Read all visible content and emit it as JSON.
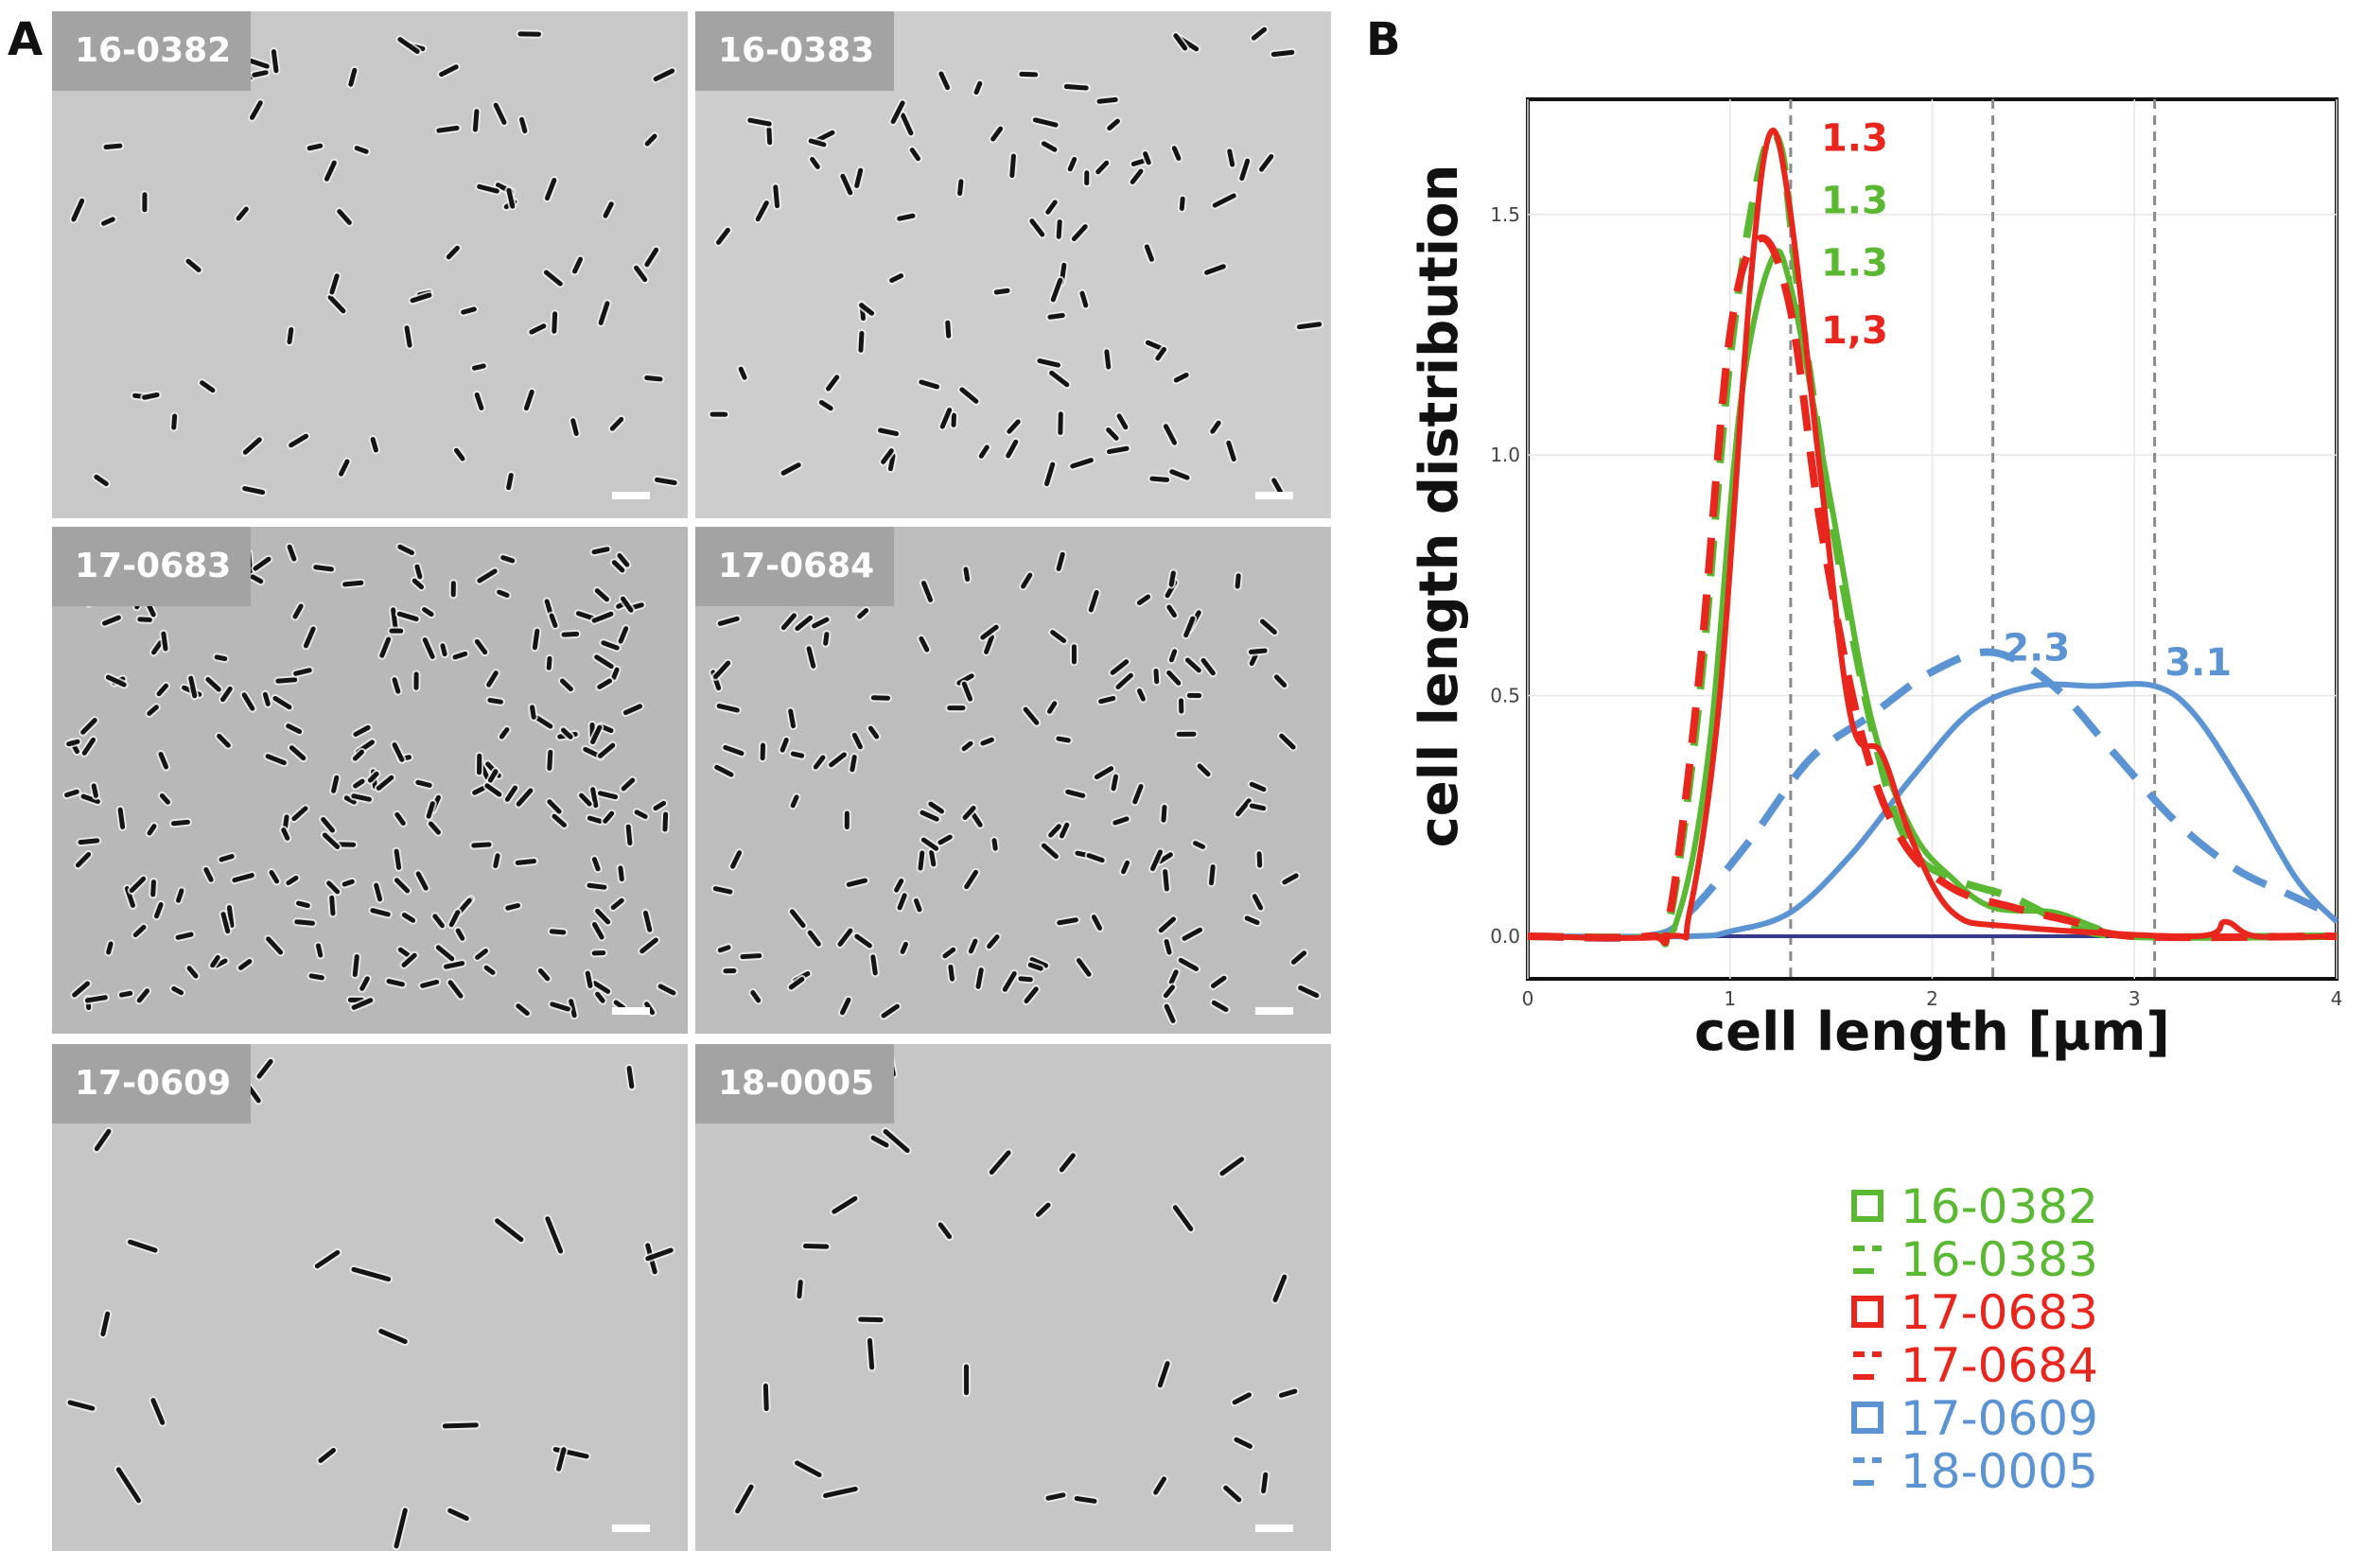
{
  "panel_labels": {
    "a": "A",
    "b": "B"
  },
  "micrographs": [
    {
      "id": "m1",
      "label": "16-0382",
      "seed": 11,
      "count": 70,
      "len": 16,
      "tint": "#c8c8c8"
    },
    {
      "id": "m2",
      "label": "16-0383",
      "seed": 23,
      "count": 95,
      "len": 16,
      "tint": "#cdcdcd"
    },
    {
      "id": "m3",
      "label": "17-0683",
      "seed": 37,
      "count": 230,
      "len": 14,
      "tint": "#b8b8b8"
    },
    {
      "id": "m4",
      "label": "17-0684",
      "seed": 41,
      "count": 150,
      "len": 14,
      "tint": "#bdbdbd"
    },
    {
      "id": "m5",
      "label": "17-0609",
      "seed": 53,
      "count": 22,
      "len": 28,
      "tint": "#c6c6c6"
    },
    {
      "id": "m6",
      "label": "18-0005",
      "seed": 67,
      "count": 30,
      "len": 24,
      "tint": "#c6c6c6"
    }
  ],
  "chart_data": {
    "type": "line",
    "xlabel": "cell length [µm]",
    "ylabel": "cell length distribution",
    "xlim": [
      0,
      4
    ],
    "ylim": [
      0,
      1.7
    ],
    "x_ticks": [
      "0",
      "1",
      "2",
      "3",
      "4"
    ],
    "y_ticks": [
      {
        "value": 0.0,
        "label": "0.0"
      },
      {
        "value": 0.5,
        "label": "0.5"
      },
      {
        "value": 1.0,
        "label": "1.0"
      },
      {
        "value": 1.5,
        "label": "1.5"
      }
    ],
    "grid": true,
    "vlines": [
      1.3,
      2.3,
      3.1
    ],
    "series": [
      {
        "name": "16-0382",
        "color": "#5bb832",
        "dash": false,
        "points": [
          [
            0,
            0
          ],
          [
            0.6,
            0
          ],
          [
            0.75,
            0.05
          ],
          [
            0.9,
            0.4
          ],
          [
            1.05,
            1.1
          ],
          [
            1.2,
            1.4
          ],
          [
            1.3,
            1.35
          ],
          [
            1.5,
            0.9
          ],
          [
            1.7,
            0.45
          ],
          [
            1.9,
            0.22
          ],
          [
            2.1,
            0.12
          ],
          [
            2.3,
            0.06
          ],
          [
            2.6,
            0.05
          ],
          [
            2.8,
            0.02
          ],
          [
            3.0,
            0
          ],
          [
            4,
            0
          ]
        ]
      },
      {
        "name": "16-0383",
        "color": "#5bb832",
        "dash": true,
        "points": [
          [
            0,
            0
          ],
          [
            0.6,
            0
          ],
          [
            0.7,
            0.03
          ],
          [
            0.85,
            0.5
          ],
          [
            1.0,
            1.2
          ],
          [
            1.15,
            1.6
          ],
          [
            1.25,
            1.64
          ],
          [
            1.35,
            1.3
          ],
          [
            1.55,
            0.75
          ],
          [
            1.75,
            0.35
          ],
          [
            1.9,
            0.18
          ],
          [
            2.1,
            0.12
          ],
          [
            2.4,
            0.08
          ],
          [
            2.7,
            0.02
          ],
          [
            3.0,
            0
          ],
          [
            4,
            0
          ]
        ]
      },
      {
        "name": "17-0683",
        "color": "#e8261e",
        "dash": false,
        "points": [
          [
            0,
            0
          ],
          [
            0.7,
            0
          ],
          [
            0.8,
            0.05
          ],
          [
            0.95,
            0.5
          ],
          [
            1.1,
            1.35
          ],
          [
            1.2,
            1.67
          ],
          [
            1.3,
            1.5
          ],
          [
            1.45,
            0.95
          ],
          [
            1.6,
            0.45
          ],
          [
            1.75,
            0.38
          ],
          [
            1.9,
            0.2
          ],
          [
            2.1,
            0.05
          ],
          [
            2.4,
            0.02
          ],
          [
            3.3,
            0
          ],
          [
            3.45,
            0.03
          ],
          [
            3.6,
            0
          ],
          [
            4,
            0
          ]
        ]
      },
      {
        "name": "17-0684",
        "color": "#e8261e",
        "dash": true,
        "points": [
          [
            0,
            0
          ],
          [
            0.6,
            0
          ],
          [
            0.7,
            0.04
          ],
          [
            0.85,
            0.55
          ],
          [
            1.0,
            1.25
          ],
          [
            1.15,
            1.45
          ],
          [
            1.3,
            1.3
          ],
          [
            1.45,
            0.85
          ],
          [
            1.65,
            0.42
          ],
          [
            1.85,
            0.2
          ],
          [
            2.1,
            0.1
          ],
          [
            2.4,
            0.06
          ],
          [
            2.7,
            0.03
          ],
          [
            3.0,
            0
          ],
          [
            4,
            0
          ]
        ]
      },
      {
        "name": "17-0609",
        "color": "#5b93d3",
        "dash": false,
        "points": [
          [
            0,
            0
          ],
          [
            0.8,
            0
          ],
          [
            1.0,
            0.01
          ],
          [
            1.3,
            0.05
          ],
          [
            1.6,
            0.17
          ],
          [
            1.9,
            0.33
          ],
          [
            2.2,
            0.47
          ],
          [
            2.5,
            0.52
          ],
          [
            2.8,
            0.52
          ],
          [
            3.1,
            0.52
          ],
          [
            3.3,
            0.46
          ],
          [
            3.55,
            0.3
          ],
          [
            3.8,
            0.12
          ],
          [
            4.0,
            0.03
          ]
        ]
      },
      {
        "name": "18-0005",
        "color": "#5b93d3",
        "dash": true,
        "points": [
          [
            0,
            0
          ],
          [
            0.6,
            0
          ],
          [
            0.8,
            0.05
          ],
          [
            1.1,
            0.2
          ],
          [
            1.4,
            0.37
          ],
          [
            1.7,
            0.46
          ],
          [
            2.0,
            0.55
          ],
          [
            2.3,
            0.59
          ],
          [
            2.6,
            0.52
          ],
          [
            2.9,
            0.38
          ],
          [
            3.2,
            0.24
          ],
          [
            3.5,
            0.14
          ],
          [
            3.8,
            0.08
          ],
          [
            4.0,
            0.04
          ]
        ]
      }
    ],
    "annotations": [
      {
        "text": "1.3",
        "x": 1.45,
        "y": 1.66,
        "color": "#e8261e"
      },
      {
        "text": "1.3",
        "x": 1.45,
        "y": 1.53,
        "color": "#5bb832"
      },
      {
        "text": "1.3",
        "x": 1.45,
        "y": 1.4,
        "color": "#5bb832"
      },
      {
        "text": "1,3",
        "x": 1.45,
        "y": 1.26,
        "color": "#e8261e"
      },
      {
        "text": "2.3",
        "x": 2.35,
        "y": 0.6,
        "color": "#5b93d3"
      },
      {
        "text": "3.1",
        "x": 3.15,
        "y": 0.57,
        "color": "#5b93d3"
      }
    ]
  },
  "legend": [
    {
      "label": "16-0382",
      "color": "#5bb832",
      "style": "solid"
    },
    {
      "label": "16-0383",
      "color": "#5bb832",
      "style": "dashed"
    },
    {
      "label": "17-0683",
      "color": "#e8261e",
      "style": "solid"
    },
    {
      "label": "17-0684",
      "color": "#e8261e",
      "style": "dashed"
    },
    {
      "label": "17-0609",
      "color": "#5b93d3",
      "style": "solid"
    },
    {
      "label": "18-0005",
      "color": "#5b93d3",
      "style": "dashed"
    }
  ]
}
